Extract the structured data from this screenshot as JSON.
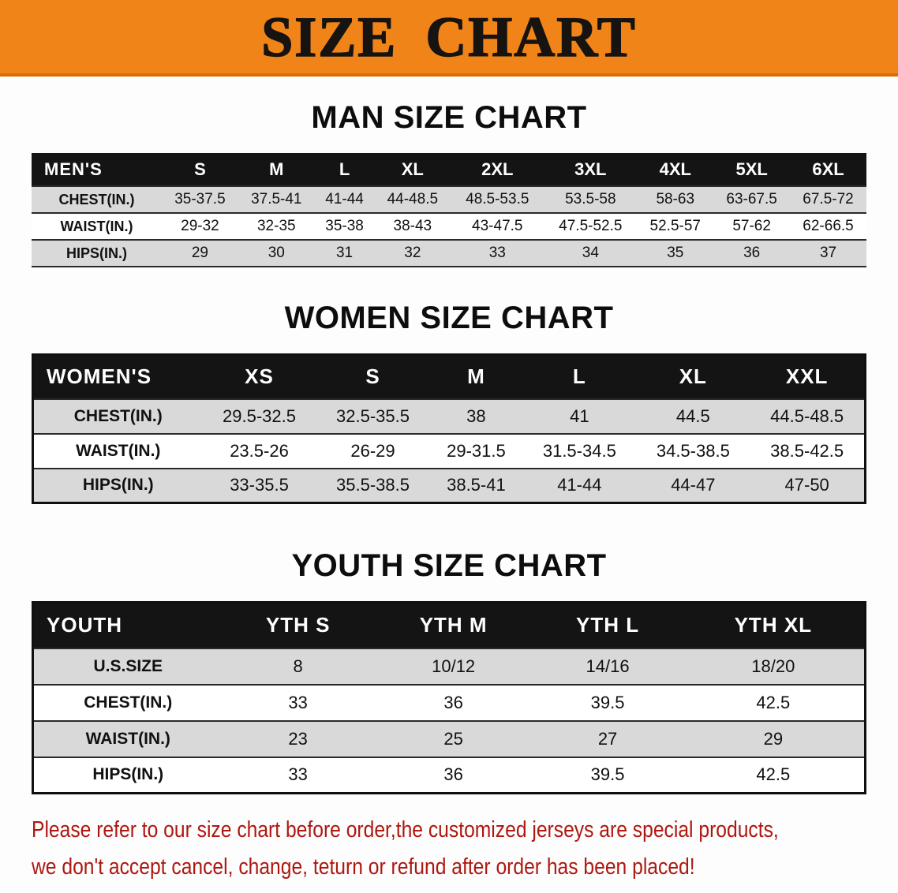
{
  "banner": {
    "title": "SIZE CHART"
  },
  "men": {
    "heading": "MAN SIZE CHART",
    "label": "MEN'S",
    "sizes": [
      "S",
      "M",
      "L",
      "XL",
      "2XL",
      "3XL",
      "4XL",
      "5XL",
      "6XL"
    ],
    "rows": [
      {
        "label": "CHEST(IN.)",
        "values": [
          "35-37.5",
          "37.5-41",
          "41-44",
          "44-48.5",
          "48.5-53.5",
          "53.5-58",
          "58-63",
          "63-67.5",
          "67.5-72"
        ]
      },
      {
        "label": "WAIST(IN.)",
        "values": [
          "29-32",
          "32-35",
          "35-38",
          "38-43",
          "43-47.5",
          "47.5-52.5",
          "52.5-57",
          "57-62",
          "62-66.5"
        ]
      },
      {
        "label": "HIPS(IN.)",
        "values": [
          "29",
          "30",
          "31",
          "32",
          "33",
          "34",
          "35",
          "36",
          "37"
        ]
      }
    ]
  },
  "women": {
    "heading": "WOMEN SIZE CHART",
    "label": "WOMEN'S",
    "sizes": [
      "XS",
      "S",
      "M",
      "L",
      "XL",
      "XXL"
    ],
    "rows": [
      {
        "label": "CHEST(IN.)",
        "values": [
          "29.5-32.5",
          "32.5-35.5",
          "38",
          "41",
          "44.5",
          "44.5-48.5"
        ]
      },
      {
        "label": "WAIST(IN.)",
        "values": [
          "23.5-26",
          "26-29",
          "29-31.5",
          "31.5-34.5",
          "34.5-38.5",
          "38.5-42.5"
        ]
      },
      {
        "label": "HIPS(IN.)",
        "values": [
          "33-35.5",
          "35.5-38.5",
          "38.5-41",
          "41-44",
          "44-47",
          "47-50"
        ]
      }
    ]
  },
  "youth": {
    "heading": "YOUTH SIZE CHART",
    "label": "YOUTH",
    "sizes": [
      "YTH S",
      "YTH M",
      "YTH L",
      "YTH XL"
    ],
    "rows": [
      {
        "label": "U.S.SIZE",
        "values": [
          "8",
          "10/12",
          "14/16",
          "18/20"
        ]
      },
      {
        "label": "CHEST(IN.)",
        "values": [
          "33",
          "36",
          "39.5",
          "42.5"
        ]
      },
      {
        "label": "WAIST(IN.)",
        "values": [
          "23",
          "25",
          "27",
          "29"
        ]
      },
      {
        "label": "HIPS(IN.)",
        "values": [
          "33",
          "36",
          "39.5",
          "42.5"
        ]
      }
    ]
  },
  "footer": {
    "line1": "Please refer to our size chart before order,the customized jerseys are special products,",
    "line2": "we don't accept cancel, change, teturn or refund after order has been placed!"
  },
  "colors": {
    "banner_bg": "#f08418",
    "banner_edge": "#d96b08",
    "header_bg": "#141414",
    "row_alt_bg": "#d9d9d9",
    "footer_text": "#ae1710"
  }
}
